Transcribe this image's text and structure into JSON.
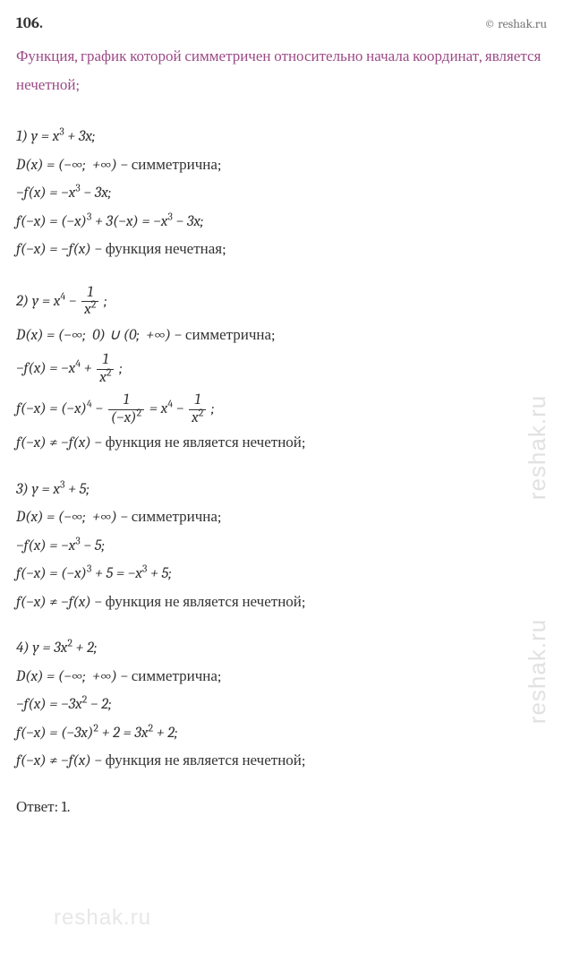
{
  "header": {
    "number": "106.",
    "copyright": "© reshak.ru"
  },
  "intro": "Функция, график которой симметричен относительно начала координат, является нечетной;",
  "sections": [
    {
      "lines": [
        {
          "html": "1) <i>y</i> = <i>x</i><sup>3</sup> + 3<i>x</i>;"
        },
        {
          "html": "<i>D</i>(<i>x</i>) = (−∞;&nbsp; +∞) − <span class='rm'>симметрична;</span>"
        },
        {
          "html": "−<i>f</i>(<i>x</i>) = −<i>x</i><sup>3</sup> − 3<i>x</i>;"
        },
        {
          "html": "<i>f</i>(−<i>x</i>) = (−<i>x</i>)<sup>3</sup> + 3(−<i>x</i>) = −<i>x</i><sup>3</sup> − 3<i>x</i>;"
        },
        {
          "html": "<i>f</i>(−<i>x</i>) = −<i>f</i>(<i>x</i>) − <span class='rm'>функция нечетная;</span>"
        }
      ]
    },
    {
      "lines": [
        {
          "html": "2) <i>y</i> = <i>x</i><sup>4</sup> − <span class='frac'><span class='num'>1</span><span class='den'><i>x</i><sup>2</sup></span></span> ;"
        },
        {
          "html": "<i>D</i>(<i>x</i>) = (−∞;&nbsp; 0) ∪ (0;&nbsp; +∞) − <span class='rm'>симметрична;</span>"
        },
        {
          "html": "−<i>f</i>(<i>x</i>) = −<i>x</i><sup>4</sup> + <span class='frac'><span class='num'>1</span><span class='den'><i>x</i><sup>2</sup></span></span> ;"
        },
        {
          "html": "<i>f</i>(−<i>x</i>) = (−<i>x</i>)<sup>4</sup> − <span class='frac'><span class='num'>1</span><span class='den'>(−<i>x</i>)<sup>2</sup></span></span> = <i>x</i><sup>4</sup> − <span class='frac'><span class='num'>1</span><span class='den'><i>x</i><sup>2</sup></span></span> ;"
        },
        {
          "html": "<i>f</i>(−<i>x</i>) ≠ −<i>f</i>(<i>x</i>) − <span class='rm'>функция не является нечетной;</span>"
        }
      ]
    },
    {
      "lines": [
        {
          "html": "3) <i>y</i> = <i>x</i><sup>3</sup> + 5;"
        },
        {
          "html": "<i>D</i>(<i>x</i>) = (−∞;&nbsp; +∞) − <span class='rm'>симметрична;</span>"
        },
        {
          "html": "−<i>f</i>(<i>x</i>) = −<i>x</i><sup>3</sup> − 5;"
        },
        {
          "html": "<i>f</i>(−<i>x</i>) = (−<i>x</i>)<sup>3</sup> + 5 = −<i>x</i><sup>3</sup> + 5;"
        },
        {
          "html": "<i>f</i>(−<i>x</i>) ≠ −<i>f</i>(<i>x</i>) − <span class='rm'>функция не является нечетной;</span>"
        }
      ]
    },
    {
      "lines": [
        {
          "html": "4) <i>y</i> = 3<i>x</i><sup>2</sup> + 2;"
        },
        {
          "html": "<i>D</i>(<i>x</i>) = (−∞;&nbsp; +∞) − <span class='rm'>симметрична;</span>"
        },
        {
          "html": "−<i>f</i>(<i>x</i>) = −3<i>x</i><sup>2</sup> − 2;"
        },
        {
          "html": "<i>f</i>(−<i>x</i>) = (−3<i>x</i>)<sup>2</sup> + 2 = 3<i>x</i><sup>2</sup> + 2;"
        },
        {
          "html": "<i>f</i>(−<i>x</i>) ≠ −<i>f</i>(<i>x</i>) − <span class='rm'>функция не является нечетной;</span>"
        }
      ]
    }
  ],
  "answer": "Ответ:  1.",
  "watermark": "reshak.ru"
}
